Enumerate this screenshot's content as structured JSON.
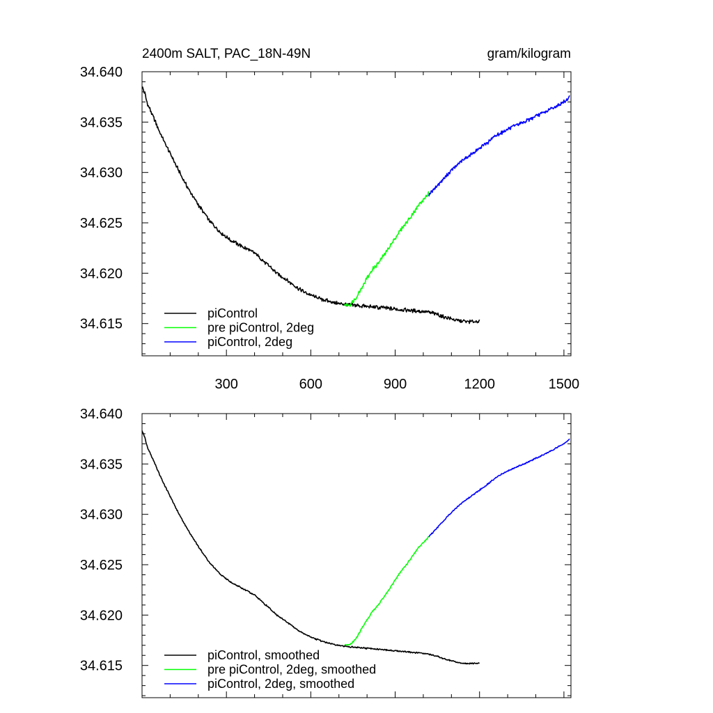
{
  "chart_data": [
    {
      "type": "line",
      "title": "2400m SALT, PAC_18N-49N",
      "units": "gram/kilogram",
      "xlim": [
        0,
        1525
      ],
      "ylim": [
        34.6118,
        34.64
      ],
      "xticks": [
        300,
        600,
        900,
        1200,
        1500
      ],
      "xtick_labels": [
        "300",
        "600",
        "900",
        "1200",
        "1500"
      ],
      "show_x_labels": true,
      "yticks": [
        34.615,
        34.62,
        34.625,
        34.63,
        34.635,
        34.64
      ],
      "ytick_labels": [
        "34.615",
        "34.620",
        "34.625",
        "34.630",
        "34.635",
        "34.640"
      ],
      "series": [
        {
          "name": "piControl",
          "color": "#000000",
          "x": [
            0,
            10,
            20,
            40,
            60,
            80,
            100,
            130,
            160,
            200,
            240,
            280,
            320,
            360,
            400,
            440,
            480,
            520,
            560,
            600,
            640,
            680,
            720,
            760,
            800,
            840,
            880,
            920,
            960,
            1000,
            1040,
            1080,
            1120,
            1160,
            1200
          ],
          "y": [
            34.6385,
            34.6378,
            34.6368,
            34.6355,
            34.6342,
            34.633,
            34.6319,
            34.6302,
            34.6286,
            34.6268,
            34.6252,
            34.624,
            34.6232,
            34.6226,
            34.622,
            34.621,
            34.62,
            34.6192,
            34.6184,
            34.6178,
            34.6174,
            34.6171,
            34.6169,
            34.6168,
            34.6167,
            34.6166,
            34.6165,
            34.6164,
            34.6163,
            34.6162,
            34.616,
            34.6156,
            34.6153,
            34.6152,
            34.6152
          ]
        },
        {
          "name": "pre piControl, 2deg",
          "color": "#00ff00",
          "x": [
            720,
            740,
            760,
            780,
            800,
            820,
            840,
            860,
            880,
            900,
            920,
            940,
            960,
            980,
            1000,
            1020
          ],
          "y": [
            34.6168,
            34.6169,
            34.6175,
            34.6185,
            34.6195,
            34.6204,
            34.621,
            34.6218,
            34.6226,
            34.6235,
            34.6243,
            34.625,
            34.6258,
            34.6266,
            34.6273,
            34.628
          ]
        },
        {
          "name": "piControl, 2deg",
          "color": "#0000ff",
          "x": [
            1020,
            1060,
            1100,
            1140,
            1180,
            1220,
            1260,
            1300,
            1340,
            1380,
            1420,
            1460,
            1500,
            1520
          ],
          "y": [
            34.6278,
            34.629,
            34.6302,
            34.6312,
            34.632,
            34.6328,
            34.6337,
            34.6343,
            34.6348,
            34.6353,
            34.6358,
            34.6364,
            34.637,
            34.6375
          ]
        }
      ],
      "legend": [
        "piControl",
        "pre piControl, 2deg",
        "piControl, 2deg"
      ]
    },
    {
      "type": "line",
      "xlim": [
        0,
        1525
      ],
      "ylim": [
        34.6118,
        34.64
      ],
      "xticks": [
        300,
        600,
        900,
        1200,
        1500
      ],
      "show_x_labels": false,
      "yticks": [
        34.615,
        34.62,
        34.625,
        34.63,
        34.635,
        34.64
      ],
      "ytick_labels": [
        "34.615",
        "34.620",
        "34.625",
        "34.630",
        "34.635",
        "34.640"
      ],
      "series": [
        {
          "name": "piControl, smoothed",
          "color": "#000000",
          "x": [
            0,
            10,
            20,
            40,
            60,
            80,
            100,
            130,
            160,
            200,
            240,
            280,
            320,
            360,
            400,
            440,
            480,
            520,
            560,
            600,
            640,
            680,
            720,
            760,
            800,
            840,
            880,
            920,
            960,
            1000,
            1040,
            1080,
            1120,
            1160,
            1200
          ],
          "y": [
            34.6383,
            34.6376,
            34.6366,
            34.6354,
            34.6341,
            34.6329,
            34.6318,
            34.6301,
            34.6286,
            34.6268,
            34.6252,
            34.624,
            34.6232,
            34.6226,
            34.622,
            34.621,
            34.62,
            34.6192,
            34.6184,
            34.6178,
            34.6174,
            34.6171,
            34.6169,
            34.6168,
            34.6167,
            34.6166,
            34.6165,
            34.6164,
            34.6163,
            34.6162,
            34.616,
            34.6156,
            34.6153,
            34.6152,
            34.6152
          ]
        },
        {
          "name": "pre piControl, 2deg, smoothed",
          "color": "#00ff00",
          "x": [
            720,
            740,
            760,
            780,
            800,
            820,
            840,
            860,
            880,
            900,
            920,
            940,
            960,
            980,
            1000,
            1020
          ],
          "y": [
            34.617,
            34.6171,
            34.6176,
            34.6186,
            34.6195,
            34.6204,
            34.621,
            34.6218,
            34.6226,
            34.6235,
            34.6243,
            34.625,
            34.6258,
            34.6266,
            34.6272,
            34.6278
          ]
        },
        {
          "name": "piControl, 2deg, smoothed",
          "color": "#0000ff",
          "x": [
            1020,
            1060,
            1100,
            1140,
            1180,
            1220,
            1260,
            1300,
            1340,
            1380,
            1420,
            1460,
            1500,
            1520
          ],
          "y": [
            34.6278,
            34.629,
            34.6302,
            34.6312,
            34.632,
            34.6328,
            34.6337,
            34.6343,
            34.6348,
            34.6353,
            34.6358,
            34.6364,
            34.637,
            34.6375
          ]
        }
      ],
      "legend": [
        "piControl, smoothed",
        "pre piControl, 2deg, smoothed",
        "piControl, 2deg, smoothed"
      ]
    }
  ]
}
